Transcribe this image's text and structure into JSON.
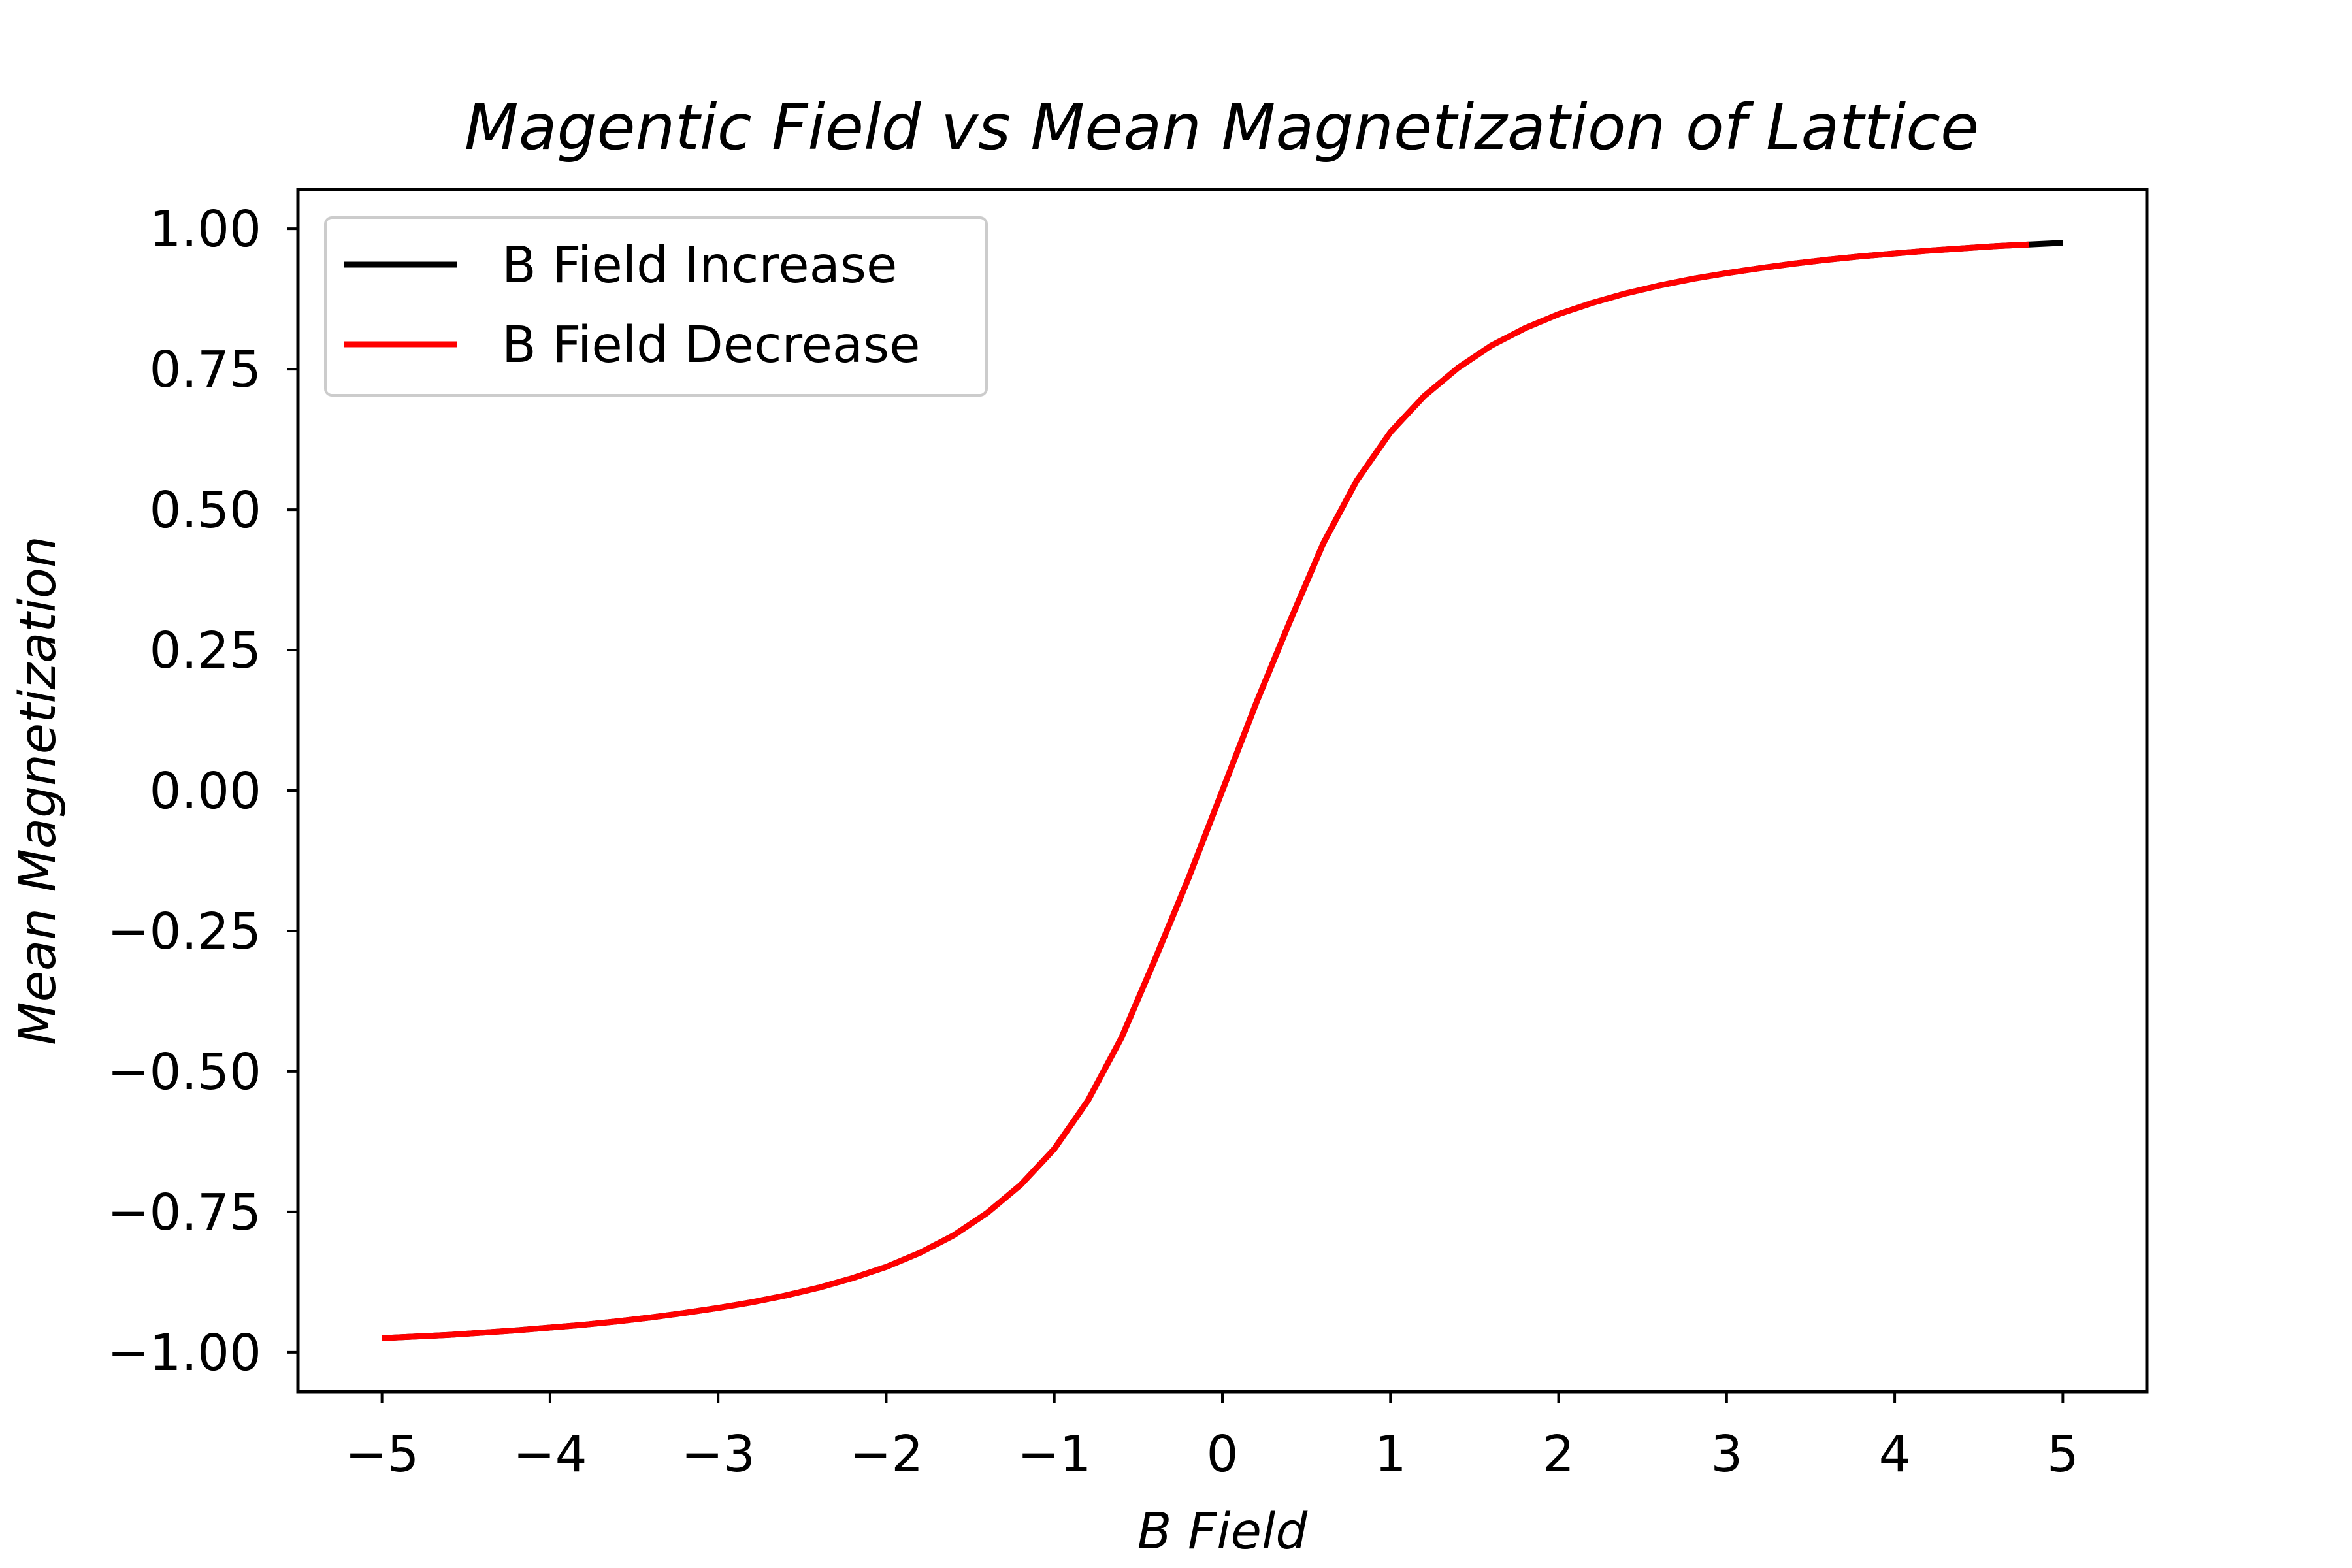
{
  "chart_data": {
    "type": "line",
    "title": "Magentic Field vs Mean Magnetization of Lattice",
    "xlabel": "B Field",
    "ylabel": "Mean Magnetization",
    "xlim": [
      -5.5,
      5.5
    ],
    "ylim": [
      -1.07,
      1.07
    ],
    "xticks": [
      -5,
      -4,
      -3,
      -2,
      -1,
      0,
      1,
      2,
      3,
      4,
      5
    ],
    "xtick_labels": [
      "−5",
      "−4",
      "−3",
      "−2",
      "−1",
      "0",
      "1",
      "2",
      "3",
      "4",
      "5"
    ],
    "yticks": [
      1.0,
      0.75,
      0.5,
      0.25,
      0.0,
      -0.25,
      -0.5,
      -0.75,
      -1.0
    ],
    "ytick_labels": [
      "1.00",
      "0.75",
      "0.50",
      "0.25",
      "0.00",
      "−0.25",
      "−0.50",
      "−0.75",
      "−1.00"
    ],
    "grid": false,
    "legend_position": "top-left",
    "series": [
      {
        "name": "B Field Increase",
        "color": "#000000",
        "x": [
          -5.0,
          -4.8,
          -4.6,
          -4.4,
          -4.2,
          -4.0,
          -3.8,
          -3.6,
          -3.4,
          -3.2,
          -3.0,
          -2.8,
          -2.6,
          -2.4,
          -2.2,
          -2.0,
          -1.8,
          -1.6,
          -1.4,
          -1.2,
          -1.0,
          -0.8,
          -0.6,
          -0.4,
          -0.2,
          0.0,
          0.2,
          0.4,
          0.6,
          0.8,
          1.0,
          1.2,
          1.4,
          1.6,
          1.8,
          2.0,
          2.2,
          2.4,
          2.6,
          2.8,
          3.0,
          3.2,
          3.4,
          3.6,
          3.8,
          4.0,
          4.2,
          4.4,
          4.6,
          4.8,
          5.0
        ],
        "y": [
          -0.975,
          -0.972,
          -0.969,
          -0.965,
          -0.961,
          -0.956,
          -0.951,
          -0.945,
          -0.938,
          -0.93,
          -0.921,
          -0.911,
          -0.899,
          -0.885,
          -0.868,
          -0.848,
          -0.823,
          -0.792,
          -0.752,
          -0.702,
          -0.638,
          -0.552,
          -0.44,
          -0.3,
          -0.155,
          0.0,
          0.155,
          0.3,
          0.44,
          0.552,
          0.638,
          0.702,
          0.752,
          0.792,
          0.823,
          0.848,
          0.868,
          0.885,
          0.899,
          0.911,
          0.921,
          0.93,
          0.938,
          0.945,
          0.951,
          0.956,
          0.961,
          0.965,
          0.969,
          0.972,
          0.975
        ]
      },
      {
        "name": "B Field Decrease",
        "color": "#ff0000",
        "x": [
          4.8,
          4.6,
          4.4,
          4.2,
          4.0,
          3.8,
          3.6,
          3.4,
          3.2,
          3.0,
          2.8,
          2.6,
          2.4,
          2.2,
          2.0,
          1.8,
          1.6,
          1.4,
          1.2,
          1.0,
          0.8,
          0.6,
          0.4,
          0.2,
          0.0,
          -0.2,
          -0.4,
          -0.6,
          -0.8,
          -1.0,
          -1.2,
          -1.4,
          -1.6,
          -1.8,
          -2.0,
          -2.2,
          -2.4,
          -2.6,
          -2.8,
          -3.0,
          -3.2,
          -3.4,
          -3.6,
          -3.8,
          -4.0,
          -4.2,
          -4.4,
          -4.6,
          -4.8,
          -5.0
        ],
        "y": [
          0.972,
          0.969,
          0.965,
          0.961,
          0.956,
          0.951,
          0.945,
          0.938,
          0.93,
          0.921,
          0.911,
          0.899,
          0.885,
          0.868,
          0.848,
          0.823,
          0.792,
          0.752,
          0.702,
          0.638,
          0.552,
          0.44,
          0.3,
          0.155,
          0.0,
          -0.155,
          -0.3,
          -0.44,
          -0.552,
          -0.638,
          -0.702,
          -0.752,
          -0.792,
          -0.823,
          -0.848,
          -0.868,
          -0.885,
          -0.899,
          -0.911,
          -0.921,
          -0.93,
          -0.938,
          -0.945,
          -0.951,
          -0.956,
          -0.961,
          -0.965,
          -0.969,
          -0.972,
          -0.975
        ]
      }
    ]
  }
}
